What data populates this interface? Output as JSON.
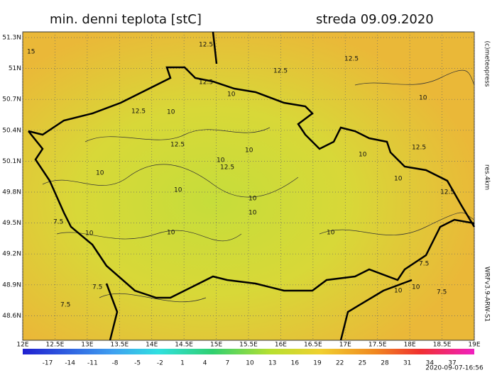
{
  "header": {
    "title": "min. denni teplota [stC]",
    "date": "streda 09.09.2020"
  },
  "side": {
    "copyright": "(c)meteopress",
    "resolution": "res.4km",
    "model": "WRFv3.9-ARW-S1"
  },
  "footer": {
    "timestamp": "2020-09-07-16:56"
  },
  "axes": {
    "lat": [
      "51.3N",
      "51N",
      "50.7N",
      "50.4N",
      "50.1N",
      "49.8N",
      "49.5N",
      "49.2N",
      "48.9N",
      "48.6N"
    ],
    "lon": [
      "12E",
      "12.5E",
      "13E",
      "13.5E",
      "14E",
      "14.5E",
      "15E",
      "15.5E",
      "16E",
      "16.5E",
      "17E",
      "17.5E",
      "18E",
      "18.5E",
      "19E"
    ]
  },
  "colorbar": {
    "labels": [
      "-17",
      "-14",
      "-11",
      "-8",
      "-5",
      "-2",
      "1",
      "4",
      "7",
      "10",
      "13",
      "16",
      "19",
      "22",
      "25",
      "28",
      "31",
      "34",
      "37"
    ]
  },
  "contour_labels": [
    "15",
    "12.5",
    "12.5",
    "12.5",
    "12.5",
    "10",
    "10",
    "12.5",
    "10",
    "12.5",
    "10",
    "12.5",
    "10",
    "10",
    "10",
    "10",
    "12.5",
    "10",
    "12.5",
    "7.5",
    "10",
    "10",
    "10",
    "7.5",
    "10",
    "10",
    "7.5",
    "10",
    "7.5",
    "10",
    "7.5"
  ]
}
